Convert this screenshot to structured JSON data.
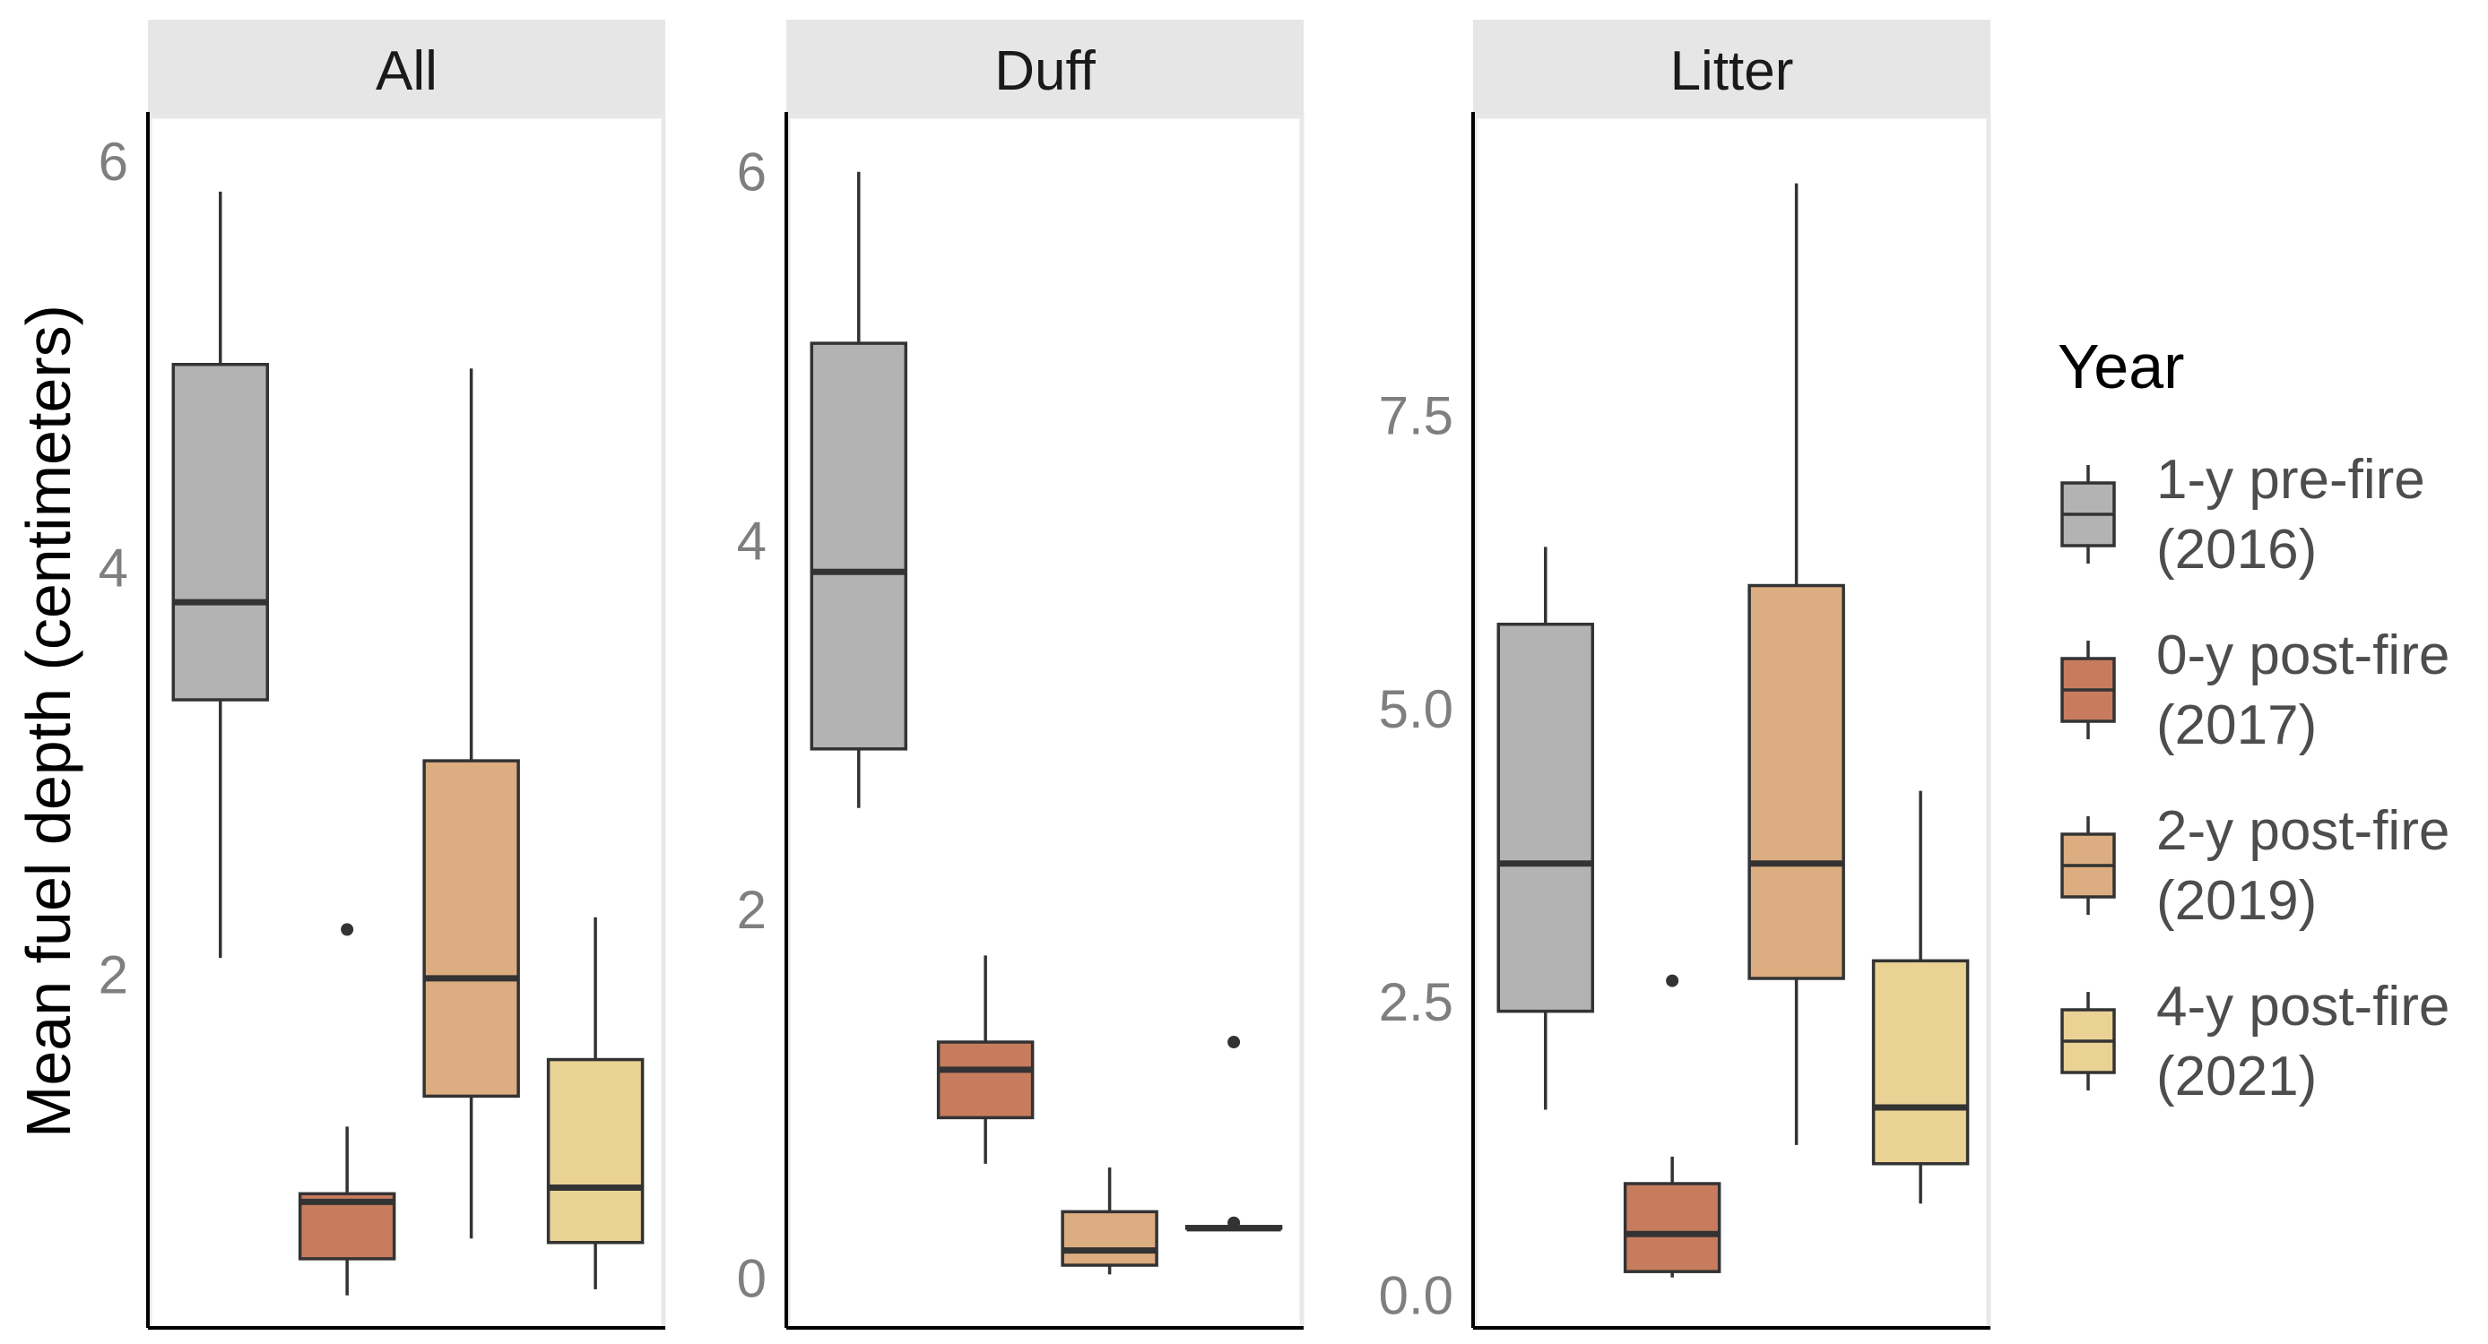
{
  "chart_data": {
    "type": "boxplot",
    "ylabel": "Mean fuel depth (centimeters)",
    "legend": {
      "title": "Year",
      "position": "right",
      "entries": [
        {
          "key": "pre2016",
          "line1": "1-y pre-fire",
          "line2": "(2016)",
          "color": "#b3b3b3"
        },
        {
          "key": "post2017",
          "line1": "0-y post-fire",
          "line2": "(2017)",
          "color": "#c77c5e"
        },
        {
          "key": "post2019",
          "line1": "2-y post-fire",
          "line2": "(2019)",
          "color": "#dcad80"
        },
        {
          "key": "post2021",
          "line1": "4-y post-fire",
          "line2": "(2021)",
          "color": "#ead295"
        }
      ]
    },
    "panels": [
      {
        "title": "All",
        "yrange": [
          0.26,
          6.22
        ],
        "yticks": [
          {
            "v": 2,
            "label": "2"
          },
          {
            "v": 4,
            "label": "4"
          },
          {
            "v": 6,
            "label": "6"
          }
        ],
        "boxes": [
          {
            "group": "pre2016",
            "min": 2.08,
            "q1": 3.35,
            "median": 3.83,
            "q3": 5.0,
            "max": 5.85,
            "outliers": []
          },
          {
            "group": "post2017",
            "min": 0.42,
            "q1": 0.6,
            "median": 0.88,
            "q3": 0.92,
            "max": 1.25,
            "outliers": [
              2.22
            ]
          },
          {
            "group": "post2019",
            "min": 0.7,
            "q1": 1.4,
            "median": 1.98,
            "q3": 3.05,
            "max": 4.98,
            "outliers": []
          },
          {
            "group": "post2021",
            "min": 0.45,
            "q1": 0.68,
            "median": 0.95,
            "q3": 1.58,
            "max": 2.28,
            "outliers": []
          }
        ]
      },
      {
        "title": "Duff",
        "yrange": [
          -0.27,
          6.3
        ],
        "yticks": [
          {
            "v": 0,
            "label": "0"
          },
          {
            "v": 2,
            "label": "2"
          },
          {
            "v": 4,
            "label": "4"
          },
          {
            "v": 6,
            "label": "6"
          }
        ],
        "boxes": [
          {
            "group": "pre2016",
            "min": 2.55,
            "q1": 2.87,
            "median": 3.83,
            "q3": 5.07,
            "max": 6.0,
            "outliers": []
          },
          {
            "group": "post2017",
            "min": 0.62,
            "q1": 0.87,
            "median": 1.13,
            "q3": 1.28,
            "max": 1.75,
            "outliers": []
          },
          {
            "group": "post2019",
            "min": 0.02,
            "q1": 0.07,
            "median": 0.15,
            "q3": 0.36,
            "max": 0.6,
            "outliers": []
          },
          {
            "group": "post2021",
            "min": 0.27,
            "q1": 0.27,
            "median": 0.27,
            "q3": 0.28,
            "max": 0.28,
            "outliers": [
              1.28,
              0.3
            ]
          }
        ]
      },
      {
        "title": "Litter",
        "yrange": [
          -0.28,
          10.05
        ],
        "yticks": [
          {
            "v": 0,
            "label": "0.0"
          },
          {
            "v": 2.5,
            "label": "2.5"
          },
          {
            "v": 5,
            "label": "5.0"
          },
          {
            "v": 7.5,
            "label": "7.5"
          }
        ],
        "boxes": [
          {
            "group": "pre2016",
            "min": 1.58,
            "q1": 2.42,
            "median": 3.68,
            "q3": 5.72,
            "max": 6.38,
            "outliers": []
          },
          {
            "group": "post2017",
            "min": 0.15,
            "q1": 0.2,
            "median": 0.52,
            "q3": 0.95,
            "max": 1.18,
            "outliers": [
              2.68
            ]
          },
          {
            "group": "post2019",
            "min": 1.28,
            "q1": 2.7,
            "median": 3.68,
            "q3": 6.05,
            "max": 9.48,
            "outliers": []
          },
          {
            "group": "post2021",
            "min": 0.78,
            "q1": 1.12,
            "median": 1.6,
            "q3": 2.85,
            "max": 4.3,
            "outliers": []
          }
        ]
      }
    ]
  }
}
